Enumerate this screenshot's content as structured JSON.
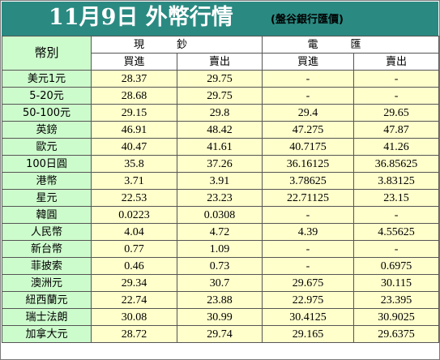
{
  "header": {
    "title": "11月9日 外幣行情",
    "subtitle": "(盤谷銀行匯價)"
  },
  "table": {
    "currency_header": "幣別",
    "groups": [
      {
        "label": "現鈔"
      },
      {
        "label": "電匯"
      }
    ],
    "sub_headers": [
      "買進",
      "賣出",
      "買進",
      "賣出"
    ],
    "rows": [
      {
        "currency": "美元1元",
        "cash_buy": "28.37",
        "cash_sell": "29.75",
        "wire_buy": "-",
        "wire_sell": "-"
      },
      {
        "currency": "5-20元",
        "cash_buy": "28.68",
        "cash_sell": "29.75",
        "wire_buy": "-",
        "wire_sell": "-"
      },
      {
        "currency": "50-100元",
        "cash_buy": "29.15",
        "cash_sell": "29.8",
        "wire_buy": "29.4",
        "wire_sell": "29.65"
      },
      {
        "currency": "英鎊",
        "cash_buy": "46.91",
        "cash_sell": "48.42",
        "wire_buy": "47.275",
        "wire_sell": "47.87"
      },
      {
        "currency": "歐元",
        "cash_buy": "40.47",
        "cash_sell": "41.61",
        "wire_buy": "40.7175",
        "wire_sell": "41.26"
      },
      {
        "currency": "100日圓",
        "cash_buy": "35.8",
        "cash_sell": "37.26",
        "wire_buy": "36.16125",
        "wire_sell": "36.85625"
      },
      {
        "currency": "港幣",
        "cash_buy": "3.71",
        "cash_sell": "3.91",
        "wire_buy": "3.78625",
        "wire_sell": "3.83125"
      },
      {
        "currency": "星元",
        "cash_buy": "22.53",
        "cash_sell": "23.23",
        "wire_buy": "22.71125",
        "wire_sell": "23.15"
      },
      {
        "currency": "韓圓",
        "cash_buy": "0.0223",
        "cash_sell": "0.0308",
        "wire_buy": "-",
        "wire_sell": "-"
      },
      {
        "currency": "人民幣",
        "cash_buy": "4.04",
        "cash_sell": "4.72",
        "wire_buy": "4.39",
        "wire_sell": "4.55625"
      },
      {
        "currency": "新台幣",
        "cash_buy": "0.77",
        "cash_sell": "1.09",
        "wire_buy": "-",
        "wire_sell": "-"
      },
      {
        "currency": "菲披索",
        "cash_buy": "0.46",
        "cash_sell": "0.73",
        "wire_buy": "-",
        "wire_sell": "0.6975"
      },
      {
        "currency": "澳洲元",
        "cash_buy": "29.34",
        "cash_sell": "30.7",
        "wire_buy": "29.675",
        "wire_sell": "30.115"
      },
      {
        "currency": "紐西蘭元",
        "cash_buy": "22.74",
        "cash_sell": "23.88",
        "wire_buy": "22.975",
        "wire_sell": "23.395"
      },
      {
        "currency": "瑞士法朗",
        "cash_buy": "30.08",
        "cash_sell": "30.99",
        "wire_buy": "30.4125",
        "wire_sell": "30.9025"
      },
      {
        "currency": "加拿大元",
        "cash_buy": "28.72",
        "cash_sell": "29.74",
        "wire_buy": "29.165",
        "wire_sell": "29.6375"
      }
    ]
  },
  "colors": {
    "header_bg": "#2a8a82",
    "currency_bg": "#cdfccc",
    "value_bg": "#ffffcc"
  }
}
